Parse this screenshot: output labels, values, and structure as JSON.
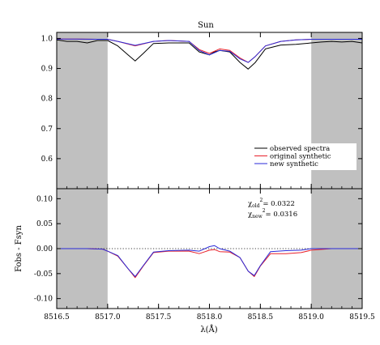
{
  "chart_data": {
    "type": "line",
    "title": "Sun",
    "xlabel": "λ(Å)",
    "xlim": [
      8516.5,
      8519.5
    ],
    "x_ticks": [
      "8516.5",
      "8517.0",
      "8517.5",
      "8518.0",
      "8518.5",
      "8519.0",
      "8519.5"
    ],
    "shaded_regions": [
      [
        8516.5,
        8517.0
      ],
      [
        8519.0,
        8519.5
      ]
    ],
    "colors": {
      "observed": "#000000",
      "original": "#e8202a",
      "new": "#2a2ad8",
      "shade": "#c0c0c0"
    },
    "top_panel": {
      "ylabel": "",
      "ylim": [
        0.5,
        1.02
      ],
      "y_ticks": [
        "0.6",
        "0.7",
        "0.8",
        "0.9",
        "1.0"
      ],
      "legend": {
        "position": "lower-right",
        "entries": [
          "observed spectra",
          "original synthetic",
          "new synthetic"
        ]
      },
      "series": [
        {
          "name": "observed spectra",
          "x": [
            8516.5,
            8516.6,
            8516.7,
            8516.8,
            8516.9,
            8517.0,
            8517.1,
            8517.2,
            8517.27,
            8517.35,
            8517.45,
            8517.6,
            8517.8,
            8517.9,
            8518.0,
            8518.05,
            8518.1,
            8518.2,
            8518.3,
            8518.38,
            8518.45,
            8518.55,
            8518.7,
            8518.85,
            8519.0,
            8519.1,
            8519.2,
            8519.3,
            8519.4,
            8519.5
          ],
          "y": [
            0.995,
            0.99,
            0.99,
            0.985,
            0.993,
            0.993,
            0.975,
            0.945,
            0.925,
            0.95,
            0.983,
            0.985,
            0.985,
            0.955,
            0.945,
            0.955,
            0.96,
            0.955,
            0.92,
            0.898,
            0.92,
            0.965,
            0.978,
            0.98,
            0.985,
            0.988,
            0.99,
            0.988,
            0.99,
            0.985
          ]
        },
        {
          "name": "original synthetic",
          "x": [
            8516.5,
            8516.7,
            8516.9,
            8517.0,
            8517.1,
            8517.27,
            8517.45,
            8517.6,
            8517.8,
            8517.9,
            8518.0,
            8518.1,
            8518.2,
            8518.3,
            8518.38,
            8518.45,
            8518.55,
            8518.7,
            8518.85,
            8519.0,
            8519.2,
            8519.5
          ],
          "y": [
            0.998,
            0.998,
            0.997,
            0.997,
            0.99,
            0.975,
            0.99,
            0.993,
            0.99,
            0.963,
            0.95,
            0.965,
            0.96,
            0.935,
            0.92,
            0.94,
            0.975,
            0.99,
            0.995,
            0.997,
            0.997,
            0.997
          ]
        },
        {
          "name": "new synthetic",
          "x": [
            8516.5,
            8516.7,
            8516.9,
            8517.0,
            8517.1,
            8517.27,
            8517.45,
            8517.6,
            8517.8,
            8517.9,
            8518.0,
            8518.1,
            8518.2,
            8518.3,
            8518.38,
            8518.45,
            8518.55,
            8518.7,
            8518.85,
            8519.0,
            8519.2,
            8519.5
          ],
          "y": [
            0.998,
            0.998,
            0.997,
            0.997,
            0.99,
            0.977,
            0.99,
            0.993,
            0.99,
            0.96,
            0.945,
            0.96,
            0.957,
            0.932,
            0.92,
            0.94,
            0.975,
            0.99,
            0.995,
            0.997,
            0.997,
            0.997
          ]
        }
      ]
    },
    "bottom_panel": {
      "ylabel": "Fobs - Fsyn",
      "ylim": [
        -0.12,
        0.12
      ],
      "y_ticks": [
        "-0.10",
        "-0.05",
        "0.00",
        "0.05",
        "0.10"
      ],
      "zero_line": "dotted",
      "annotations": {
        "chi_old_label": "χ",
        "chi_old_sub": "old",
        "chi_old_value": "= 0.0322",
        "chi_new_label": "χ",
        "chi_new_sub": "new",
        "chi_new_value": "= 0.0316",
        "superscript": "2"
      },
      "series": [
        {
          "name": "original synthetic",
          "x": [
            8516.5,
            8516.8,
            8516.95,
            8517.0,
            8517.1,
            8517.2,
            8517.27,
            8517.35,
            8517.45,
            8517.6,
            8517.8,
            8517.9,
            8518.0,
            8518.05,
            8518.1,
            8518.2,
            8518.3,
            8518.38,
            8518.44,
            8518.5,
            8518.6,
            8518.75,
            8518.9,
            8519.0,
            8519.2,
            8519.5
          ],
          "y": [
            0.0,
            0.0,
            -0.001,
            -0.005,
            -0.015,
            -0.04,
            -0.058,
            -0.035,
            -0.008,
            -0.005,
            -0.005,
            -0.01,
            -0.003,
            -0.002,
            -0.006,
            -0.007,
            -0.018,
            -0.045,
            -0.056,
            -0.035,
            -0.01,
            -0.01,
            -0.008,
            -0.003,
            0.0,
            0.0
          ]
        },
        {
          "name": "new synthetic",
          "x": [
            8516.5,
            8516.8,
            8516.95,
            8517.0,
            8517.1,
            8517.2,
            8517.27,
            8517.35,
            8517.45,
            8517.6,
            8517.8,
            8517.9,
            8518.0,
            8518.05,
            8518.1,
            8518.2,
            8518.3,
            8518.38,
            8518.44,
            8518.5,
            8518.6,
            8518.75,
            8518.9,
            8519.0,
            8519.2,
            8519.5
          ],
          "y": [
            0.0,
            0.0,
            -0.001,
            -0.005,
            -0.014,
            -0.04,
            -0.056,
            -0.034,
            -0.007,
            -0.004,
            -0.003,
            -0.005,
            0.004,
            0.006,
            0.0,
            -0.005,
            -0.018,
            -0.045,
            -0.054,
            -0.034,
            -0.006,
            -0.004,
            -0.003,
            0.0,
            0.0,
            0.0
          ]
        }
      ]
    }
  }
}
